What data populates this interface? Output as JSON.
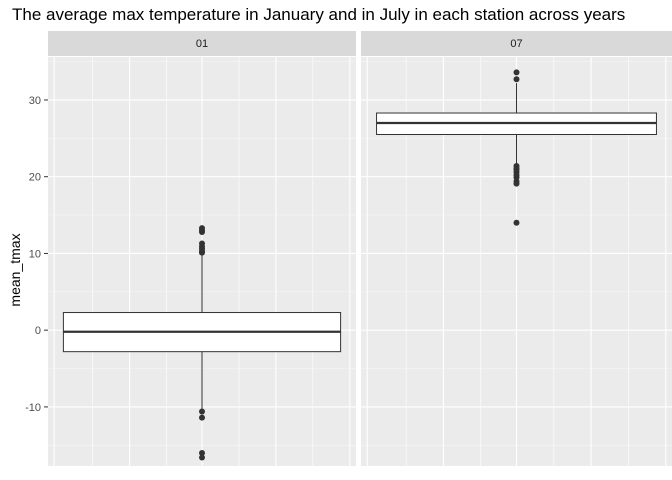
{
  "chart_data": {
    "type": "boxplot",
    "title": "The average max temperature in January and in July in each station across years",
    "xlabel": "",
    "ylabel": "mean_tmax",
    "ylim": [
      -17.7,
      35.6
    ],
    "yticks": [
      -10,
      0,
      10,
      20,
      30
    ],
    "grid": true,
    "facets": [
      {
        "label": "01",
        "box": {
          "q1": -2.8,
          "median": -0.2,
          "q3": 2.3,
          "whisker_low": -10.3,
          "whisker_high": 9.9
        },
        "outliers": [
          10.1,
          10.3,
          10.6,
          10.9,
          11.3,
          12.8,
          13.0,
          13.3,
          -10.6,
          -11.4,
          -16.0,
          -16.6
        ]
      },
      {
        "label": "07",
        "box": {
          "q1": 25.5,
          "median": 27.0,
          "q3": 28.3,
          "whisker_low": 21.5,
          "whisker_high": 32.2
        },
        "outliers": [
          32.7,
          33.6,
          21.4,
          21.1,
          20.9,
          20.6,
          20.2,
          19.9,
          19.4,
          19.1,
          14.0
        ]
      }
    ]
  }
}
